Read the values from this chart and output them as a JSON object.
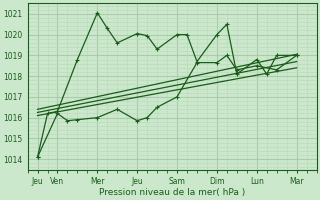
{
  "bg_color": "#cce8cc",
  "grid_color_major": "#aaccaa",
  "grid_color_minor": "#bbdabb",
  "line_color": "#1a5c1a",
  "xlabel": "Pression niveau de la mer( hPa )",
  "ylim": [
    1013.5,
    1021.5
  ],
  "yticks": [
    1014,
    1015,
    1016,
    1017,
    1018,
    1019,
    1020,
    1021
  ],
  "x_day_labels": [
    "Jeu",
    "Ven",
    "Mer",
    "Jeu",
    "Sam",
    "Dim",
    "Lun",
    "Mar"
  ],
  "x_day_positions": [
    0,
    2,
    6,
    10,
    14,
    18,
    22,
    26
  ],
  "xlim": [
    -1,
    28
  ],
  "x_minor_step": 1,
  "series_peak_x": [
    0,
    1,
    2,
    4,
    6,
    7,
    8,
    10,
    11,
    12,
    14,
    15,
    16,
    18,
    19,
    20,
    22,
    23,
    24,
    26
  ],
  "series_peak_y": [
    1014.1,
    1016.2,
    1016.3,
    1018.8,
    1021.05,
    1020.3,
    1019.6,
    1020.05,
    1019.95,
    1019.3,
    1020.0,
    1020.0,
    1018.7,
    1020.0,
    1020.5,
    1018.1,
    1018.8,
    1018.1,
    1019.0,
    1019.0
  ],
  "series_low_x": [
    0,
    2,
    3,
    4,
    6,
    8,
    10,
    11,
    12,
    14,
    16,
    18,
    19,
    20,
    22,
    24,
    26
  ],
  "series_low_y": [
    1014.1,
    1016.2,
    1015.85,
    1015.9,
    1016.0,
    1016.4,
    1015.85,
    1016.0,
    1016.5,
    1017.0,
    1018.65,
    1018.65,
    1019.0,
    1018.3,
    1018.5,
    1018.3,
    1019.0
  ],
  "trend1_x": [
    0,
    26
  ],
  "trend1_y": [
    1016.1,
    1018.4
  ],
  "trend2_x": [
    0,
    26
  ],
  "trend2_y": [
    1016.25,
    1018.7
  ],
  "trend3_x": [
    0,
    26
  ],
  "trend3_y": [
    1016.4,
    1019.05
  ]
}
